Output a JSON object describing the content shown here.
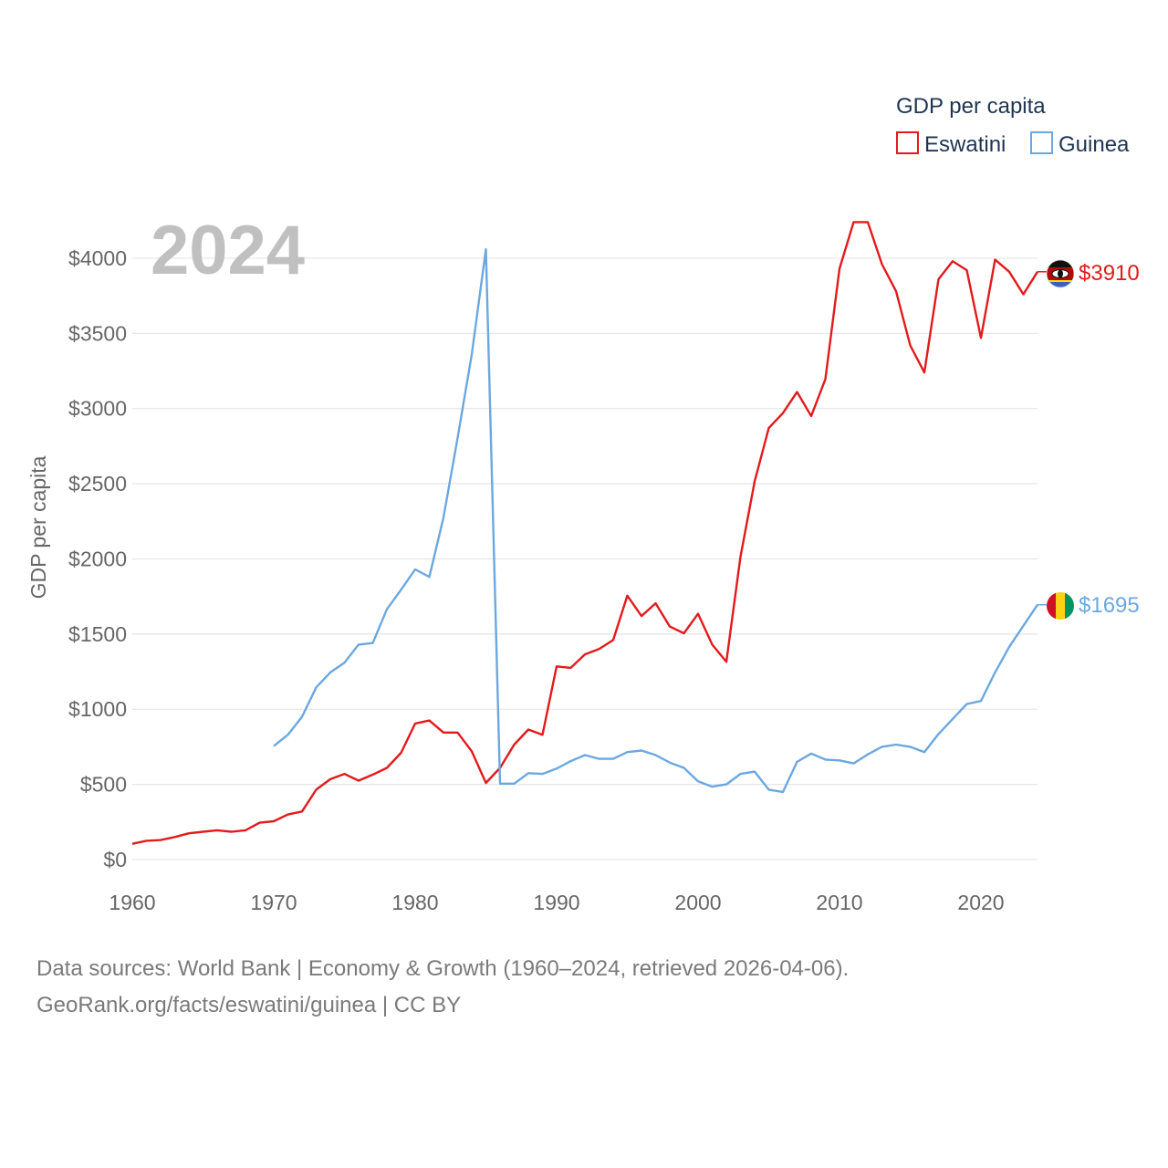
{
  "chart_data": {
    "type": "line",
    "title": "GDP per capita",
    "year_label": "2024",
    "ylabel": "GDP per capita",
    "xlabel": "",
    "xlim": [
      1960,
      2024
    ],
    "ylim": [
      0,
      4200
    ],
    "y_ticks": [
      0,
      500,
      1000,
      1500,
      2000,
      2500,
      3000,
      3500,
      4000
    ],
    "y_tick_labels": [
      "$0",
      "$500",
      "$1000",
      "$1500",
      "$2000",
      "$2500",
      "$3000",
      "$3500",
      "$4000"
    ],
    "x_ticks": [
      1960,
      1970,
      1980,
      1990,
      2000,
      2010,
      2020
    ],
    "x_tick_labels": [
      "1960",
      "1970",
      "1980",
      "1990",
      "2000",
      "2010",
      "2020"
    ],
    "legend_title": "GDP per capita",
    "legend_position": "top-right",
    "series": [
      {
        "name": "Eswatini",
        "color": "#e31a1c",
        "end_label": "$3910",
        "flag_icon": "eswatini-flag-icon",
        "x": [
          1960,
          1961,
          1962,
          1963,
          1964,
          1965,
          1966,
          1967,
          1968,
          1969,
          1970,
          1971,
          1972,
          1973,
          1974,
          1975,
          1976,
          1977,
          1978,
          1979,
          1980,
          1981,
          1982,
          1983,
          1984,
          1985,
          1986,
          1987,
          1988,
          1989,
          1990,
          1991,
          1992,
          1993,
          1994,
          1995,
          1996,
          1997,
          1998,
          1999,
          2000,
          2001,
          2002,
          2003,
          2004,
          2005,
          2006,
          2007,
          2008,
          2009,
          2010,
          2011,
          2012,
          2013,
          2014,
          2015,
          2016,
          2017,
          2018,
          2019,
          2020,
          2021,
          2022,
          2023,
          2024
        ],
        "values": [
          105,
          125,
          130,
          150,
          175,
          185,
          195,
          185,
          195,
          245,
          255,
          300,
          320,
          465,
          535,
          570,
          525,
          565,
          610,
          710,
          905,
          925,
          845,
          845,
          720,
          510,
          610,
          765,
          865,
          830,
          1285,
          1275,
          1365,
          1400,
          1460,
          1755,
          1620,
          1705,
          1550,
          1505,
          1635,
          1430,
          1315,
          2015,
          2515,
          2870,
          2970,
          3110,
          2950,
          3195,
          3930,
          4240,
          4240,
          3960,
          3780,
          3420,
          3240,
          3860,
          3980,
          3920,
          3470,
          3990,
          3910,
          3760,
          3910
        ]
      },
      {
        "name": "Guinea",
        "color": "#6ba8e0",
        "end_label": "$1695",
        "flag_icon": "guinea-flag-icon",
        "x": [
          1970,
          1971,
          1972,
          1973,
          1974,
          1975,
          1976,
          1977,
          1978,
          1979,
          1980,
          1981,
          1982,
          1983,
          1984,
          1985,
          1986,
          1987,
          1988,
          1989,
          1990,
          1991,
          1992,
          1993,
          1994,
          1995,
          1996,
          1997,
          1998,
          1999,
          2000,
          2001,
          2002,
          2003,
          2004,
          2005,
          2006,
          2007,
          2008,
          2009,
          2010,
          2011,
          2012,
          2013,
          2014,
          2015,
          2016,
          2017,
          2018,
          2019,
          2020,
          2021,
          2022,
          2023,
          2024
        ],
        "values": [
          755,
          830,
          950,
          1145,
          1245,
          1310,
          1430,
          1440,
          1665,
          1795,
          1930,
          1880,
          2275,
          2805,
          3360,
          4060,
          505,
          505,
          575,
          570,
          605,
          655,
          695,
          670,
          670,
          715,
          725,
          695,
          645,
          610,
          520,
          485,
          500,
          570,
          585,
          465,
          450,
          650,
          705,
          665,
          660,
          640,
          700,
          750,
          765,
          750,
          715,
          835,
          935,
          1035,
          1055,
          1245,
          1415,
          1555,
          1695
        ]
      }
    ]
  },
  "source_line_1": "Data sources: World Bank | Economy & Growth (1960–2024, retrieved 2026-04-06).",
  "source_line_2": "GeoRank.org/facts/eswatini/guinea | CC BY"
}
